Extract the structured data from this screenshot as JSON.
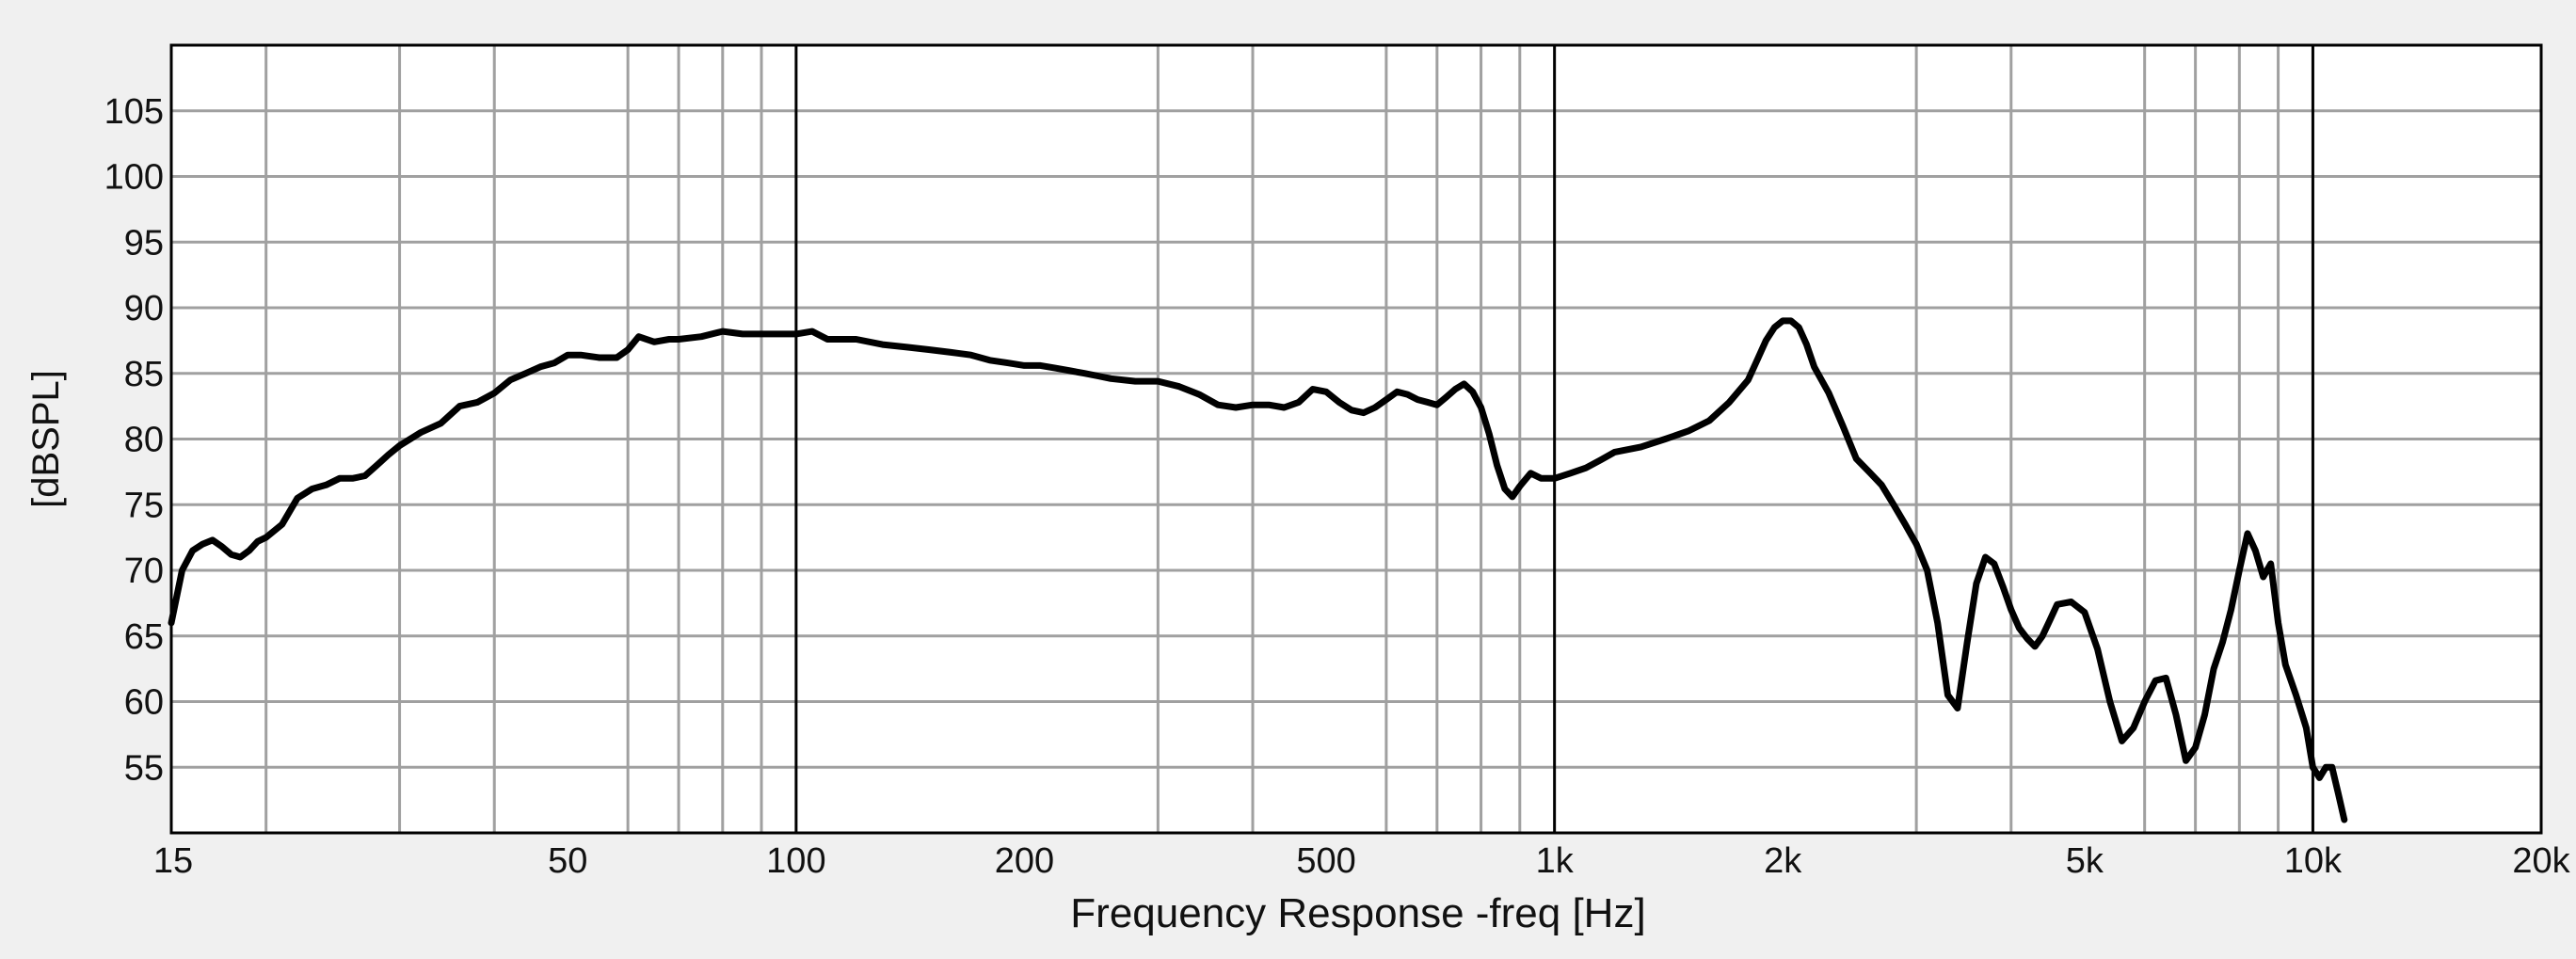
{
  "chart_data": {
    "type": "line",
    "title": "",
    "xlabel": "Frequency Response -freq [Hz]",
    "ylabel": "[dBSPL]",
    "x_scale": "log",
    "xlim": [
      15,
      20000
    ],
    "ylim": [
      50,
      110
    ],
    "grid": true,
    "x_tick_values": [
      15,
      50,
      100,
      200,
      500,
      1000,
      2000,
      5000,
      10000,
      20000
    ],
    "x_tick_labels": [
      "15",
      "50",
      "100",
      "200",
      "500",
      "1k",
      "2k",
      "5k",
      "10k",
      "20k"
    ],
    "y_ticks": [
      55,
      60,
      65,
      70,
      75,
      80,
      85,
      90,
      95,
      100,
      105
    ],
    "y_tick_labels": [
      "55",
      "60",
      "65",
      "70",
      "75",
      "80",
      "85",
      "90",
      "95",
      "100",
      "105"
    ],
    "minor_x_grid": [
      20,
      30,
      40,
      60,
      70,
      80,
      90,
      300,
      400,
      600,
      700,
      800,
      900,
      3000,
      4000,
      6000,
      7000,
      8000,
      9000
    ],
    "major_x_grid": [
      100,
      1000,
      10000
    ],
    "line_color": "#000000",
    "grid_color": "#a0a0a0",
    "background": "#f0f0f0",
    "plot_background": "#ffffff",
    "series": [
      {
        "x": [
          15,
          15.5,
          16,
          16.5,
          17,
          17.5,
          18,
          18.5,
          19,
          19.5,
          20,
          21,
          22,
          23,
          24,
          25,
          26,
          27,
          28,
          29,
          30,
          32,
          34,
          36,
          38,
          40,
          42,
          44,
          46,
          48,
          50,
          52,
          55,
          58,
          60,
          62,
          65,
          68,
          70,
          75,
          80,
          85,
          90,
          95,
          100,
          105,
          110,
          120,
          130,
          140,
          150,
          160,
          170,
          180,
          190,
          200,
          210,
          220,
          230,
          240,
          250,
          260,
          280,
          300,
          320,
          340,
          360,
          380,
          400,
          420,
          440,
          460,
          480,
          500,
          520,
          540,
          560,
          580,
          600,
          620,
          640,
          660,
          680,
          700,
          720,
          740,
          760,
          780,
          800,
          820,
          840,
          860,
          880,
          900,
          930,
          960,
          1000,
          1050,
          1100,
          1150,
          1200,
          1300,
          1400,
          1500,
          1600,
          1700,
          1800,
          1850,
          1900,
          1950,
          2000,
          2050,
          2100,
          2150,
          2200,
          2300,
          2400,
          2500,
          2600,
          2700,
          2800,
          2900,
          3000,
          3100,
          3200,
          3300,
          3400,
          3500,
          3600,
          3700,
          3800,
          3900,
          4000,
          4100,
          4200,
          4300,
          4400,
          4500,
          4600,
          4800,
          5000,
          5200,
          5400,
          5600,
          5800,
          6000,
          6200,
          6400,
          6600,
          6800,
          7000,
          7200,
          7400,
          7600,
          7800,
          8000,
          8200,
          8400,
          8600,
          8800,
          9000,
          9200,
          9500,
          9800,
          10000,
          10200,
          10400,
          10600,
          10800,
          11000
        ],
        "y": [
          66,
          70,
          71.5,
          72,
          72.3,
          71.8,
          71.2,
          71,
          71.5,
          72.2,
          72.5,
          73.5,
          75.5,
          76.2,
          76.5,
          77,
          77,
          77.2,
          78,
          78.8,
          79.5,
          80.5,
          81.2,
          82.5,
          82.8,
          83.5,
          84.5,
          85,
          85.5,
          85.8,
          86.4,
          86.4,
          86.2,
          86.2,
          86.8,
          87.8,
          87.4,
          87.6,
          87.6,
          87.8,
          88.2,
          88,
          88,
          88,
          88,
          88.2,
          87.6,
          87.6,
          87.2,
          87,
          86.8,
          86.6,
          86.4,
          86,
          85.8,
          85.6,
          85.6,
          85.4,
          85.2,
          85,
          84.8,
          84.6,
          84.4,
          84.4,
          84,
          83.4,
          82.6,
          82.4,
          82.6,
          82.6,
          82.4,
          82.8,
          83.8,
          83.6,
          82.8,
          82.2,
          82,
          82.4,
          83,
          83.6,
          83.4,
          83,
          82.8,
          82.6,
          83.2,
          83.8,
          84.2,
          83.6,
          82.4,
          80.4,
          78,
          76.2,
          75.6,
          76.4,
          77.4,
          77,
          77,
          77.4,
          77.8,
          78.4,
          79,
          79.4,
          80,
          80.6,
          81.4,
          82.8,
          84.5,
          86,
          87.5,
          88.5,
          89,
          89,
          88.5,
          87.2,
          85.5,
          83.5,
          81,
          78.5,
          77.5,
          76.5,
          75,
          73.5,
          72,
          70,
          66,
          60.5,
          59.5,
          64.5,
          69,
          71,
          70.5,
          68.8,
          67,
          65.6,
          64.8,
          64.2,
          65,
          66.2,
          67.4,
          67.6,
          66.8,
          64,
          60,
          57,
          58,
          60,
          61.6,
          61.8,
          59,
          55.5,
          56.5,
          59,
          62.5,
          64.5,
          67,
          70,
          72.8,
          71.5,
          69.5,
          70.5,
          66,
          62.8,
          60.5,
          58,
          55,
          54.2,
          55,
          55,
          53,
          51
        ]
      }
    ]
  }
}
